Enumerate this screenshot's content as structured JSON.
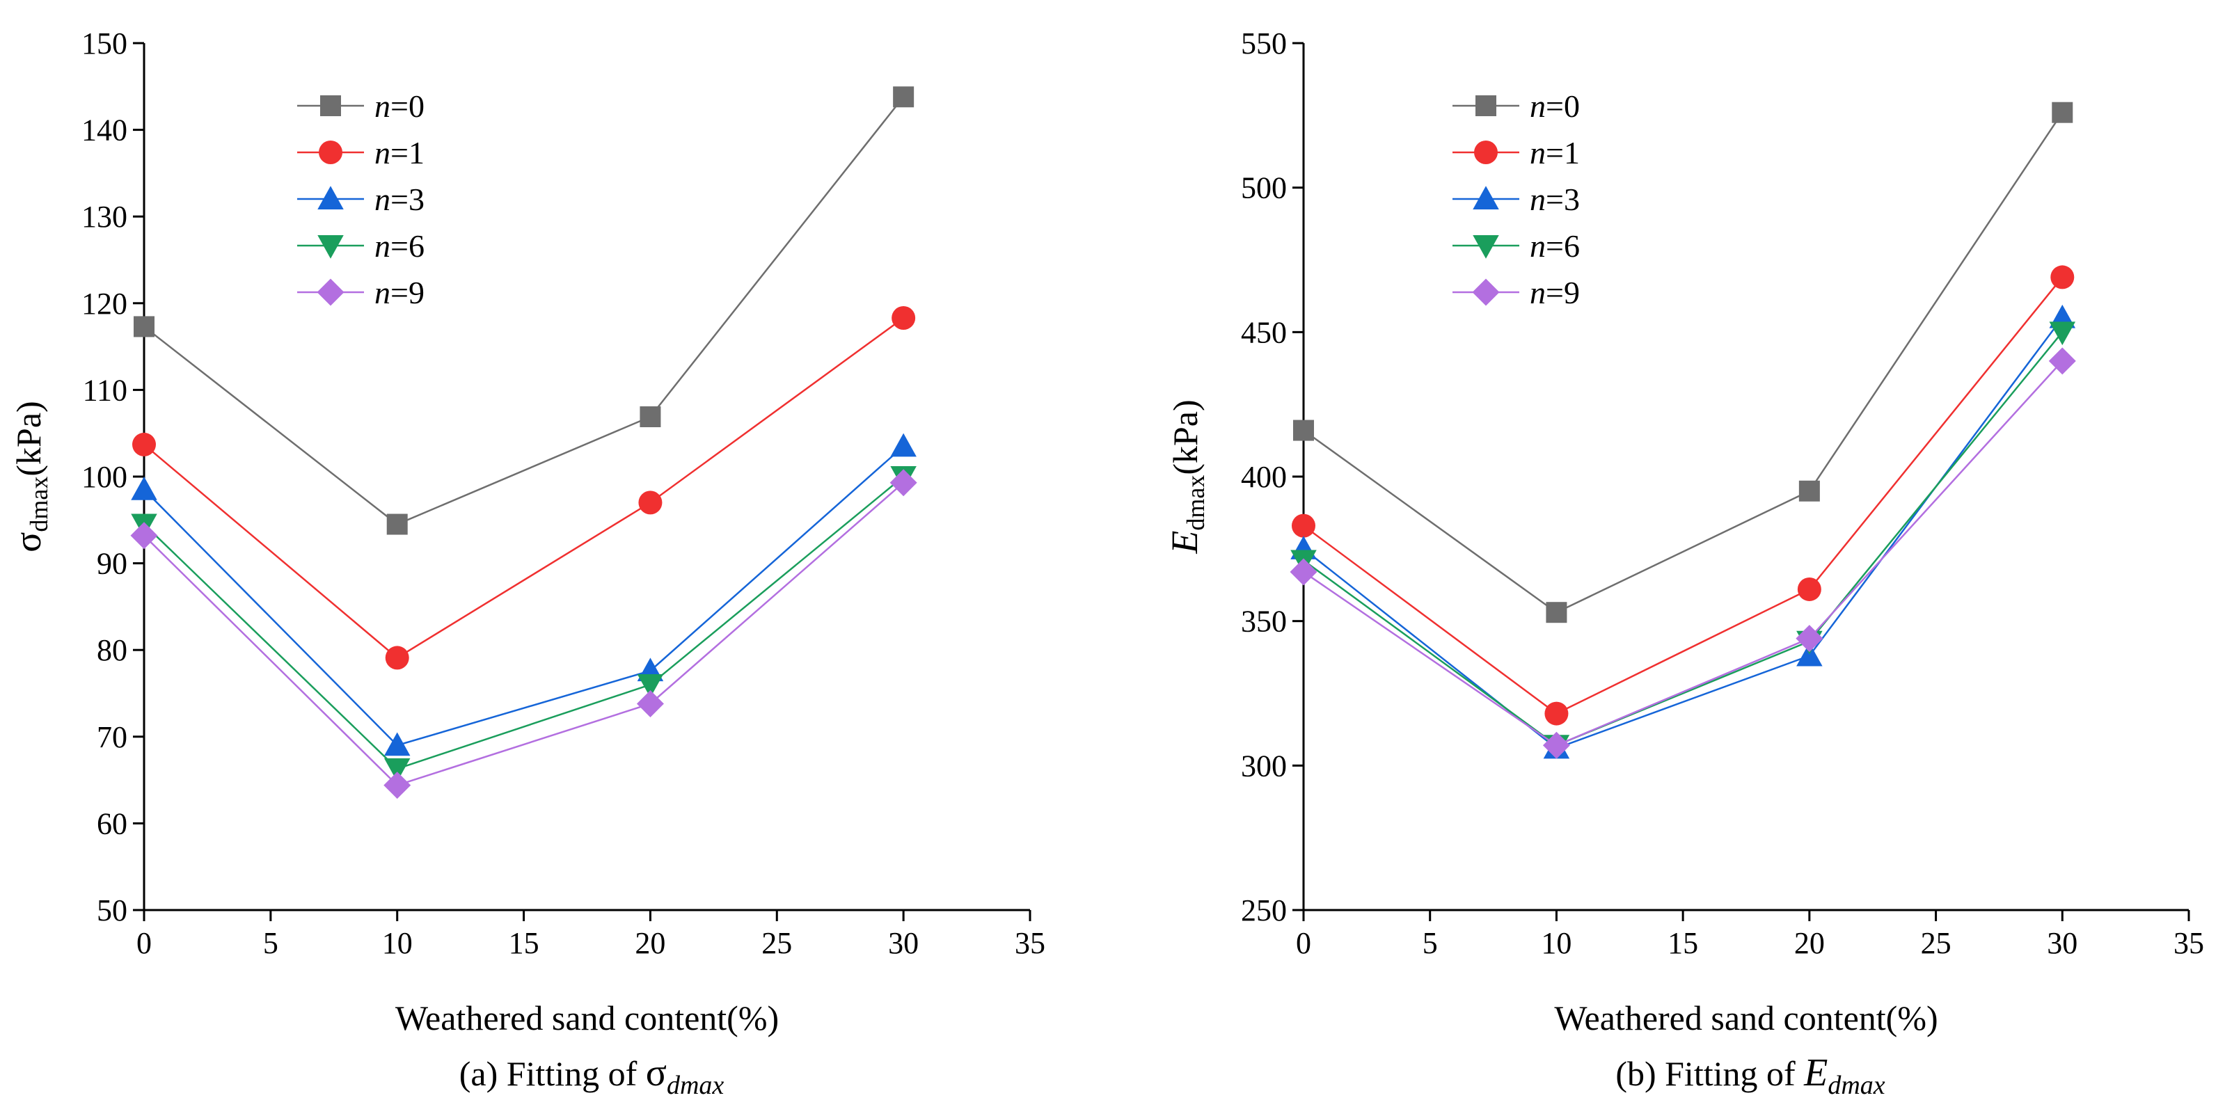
{
  "chart_data": [
    {
      "type": "line",
      "caption_prefix": "(a)  Fitting of ",
      "caption_symbol": "σ",
      "caption_sub": "dmax",
      "xlabel": "Weathered sand content(%)",
      "ylabel_symbol": "σ",
      "ylabel_sub": "dmax",
      "ylabel_unit": "(kPa)",
      "xlim": [
        0,
        35
      ],
      "ylim": [
        50,
        150
      ],
      "xticks": [
        "0",
        "5",
        "10",
        "15",
        "20",
        "25",
        "30",
        "35"
      ],
      "yticks": [
        "50",
        "60",
        "70",
        "80",
        "90",
        "100",
        "110",
        "120",
        "130",
        "140",
        "150"
      ],
      "legend_position": "top-left",
      "x": [
        0,
        10,
        20,
        30
      ],
      "series": [
        {
          "name_var": "n",
          "name_val": "=0",
          "color": "#6e6e6e",
          "marker": "square",
          "values": [
            117.3,
            94.5,
            106.9,
            143.8
          ]
        },
        {
          "name_var": "n",
          "name_val": "=1",
          "color": "#f03030",
          "marker": "circle",
          "values": [
            103.7,
            79.1,
            97.0,
            118.3
          ]
        },
        {
          "name_var": "n",
          "name_val": "=3",
          "color": "#1565d8",
          "marker": "triangle-up",
          "values": [
            98.5,
            69.0,
            77.6,
            103.5
          ]
        },
        {
          "name_var": "n",
          "name_val": "=6",
          "color": "#1a9e5c",
          "marker": "triangle-down",
          "values": [
            94.5,
            66.3,
            76.0,
            100.0
          ]
        },
        {
          "name_var": "n",
          "name_val": "=9",
          "color": "#b36fe0",
          "marker": "diamond",
          "values": [
            93.2,
            64.4,
            73.8,
            99.3
          ]
        }
      ]
    },
    {
      "type": "line",
      "caption_prefix": "(b)  Fitting of  ",
      "caption_symbol": "E",
      "caption_sub": "dmax",
      "xlabel": "Weathered sand content(%)",
      "ylabel_symbol": "E",
      "ylabel_sub": "dmax",
      "ylabel_unit": "(kPa)",
      "xlim": [
        0,
        35
      ],
      "ylim": [
        250,
        550
      ],
      "xticks": [
        "0",
        "5",
        "10",
        "15",
        "20",
        "25",
        "30",
        "35"
      ],
      "yticks": [
        "250",
        "300",
        "350",
        "400",
        "450",
        "500",
        "550"
      ],
      "legend_position": "top-left",
      "x": [
        0,
        10,
        20,
        30
      ],
      "series": [
        {
          "name_var": "n",
          "name_val": "=0",
          "color": "#6e6e6e",
          "marker": "square",
          "values": [
            416.0,
            353.0,
            395.0,
            526.0
          ]
        },
        {
          "name_var": "n",
          "name_val": "=1",
          "color": "#f03030",
          "marker": "circle",
          "values": [
            383.0,
            318.0,
            361.0,
            469.0
          ]
        },
        {
          "name_var": "n",
          "name_val": "=3",
          "color": "#1565d8",
          "marker": "triangle-up",
          "values": [
            375.0,
            306.0,
            338.0,
            455.0
          ]
        },
        {
          "name_var": "n",
          "name_val": "=6",
          "color": "#1a9e5c",
          "marker": "triangle-down",
          "values": [
            371.0,
            307.0,
            343.0,
            450.0
          ]
        },
        {
          "name_var": "n",
          "name_val": "=9",
          "color": "#b36fe0",
          "marker": "diamond",
          "values": [
            367.0,
            307.0,
            344.0,
            440.0
          ]
        }
      ]
    }
  ]
}
